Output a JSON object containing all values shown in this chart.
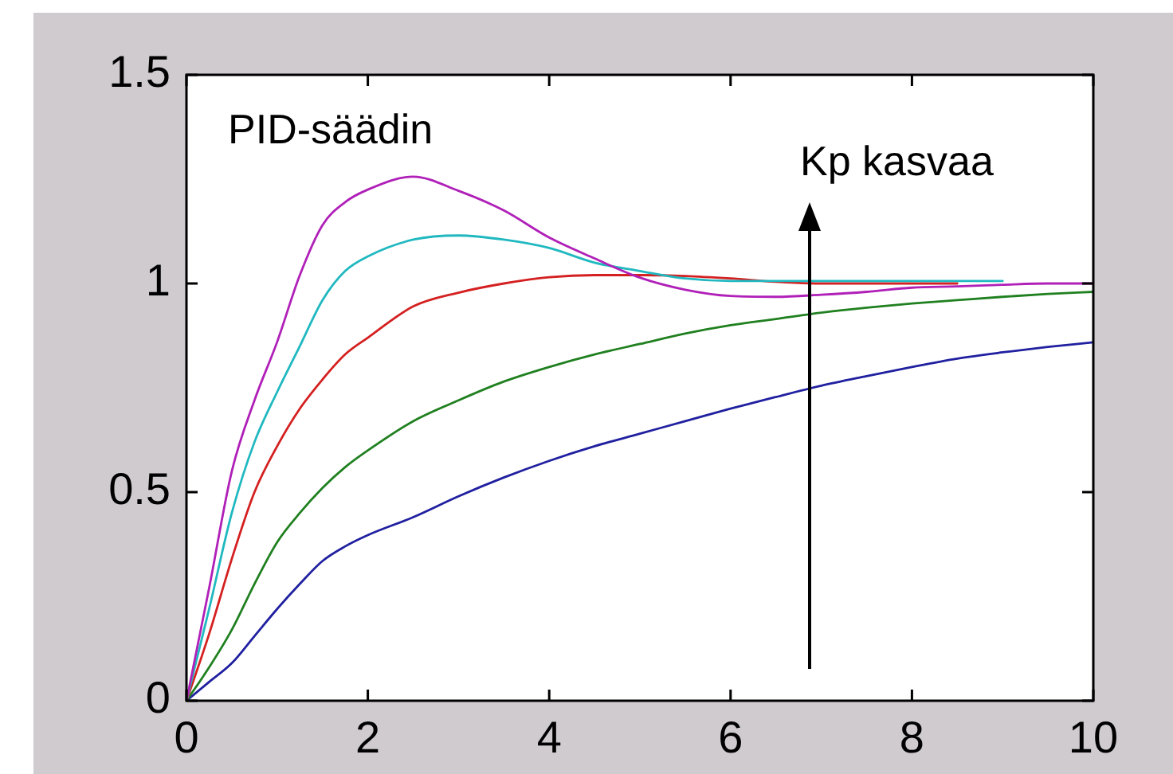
{
  "chart_data": {
    "type": "line",
    "x": [
      0,
      0.25,
      0.5,
      0.75,
      1,
      1.25,
      1.5,
      1.75,
      2,
      2.5,
      3,
      3.5,
      4,
      4.5,
      5,
      5.5,
      6,
      6.5,
      7,
      7.5,
      8,
      8.5,
      9,
      9.5,
      10
    ],
    "series": [
      {
        "color": "#2020a0",
        "values": [
          0,
          0.045,
          0.09,
          0.155,
          0.22,
          0.28,
          0.335,
          0.37,
          0.397,
          0.44,
          0.49,
          0.535,
          0.575,
          0.61,
          0.64,
          0.67,
          0.7,
          0.728,
          0.755,
          0.778,
          0.8,
          0.82,
          0.835,
          0.848,
          0.859
        ]
      },
      {
        "color": "#208020",
        "values": [
          0,
          0.08,
          0.17,
          0.28,
          0.38,
          0.45,
          0.51,
          0.56,
          0.6,
          0.67,
          0.72,
          0.765,
          0.8,
          0.83,
          0.855,
          0.88,
          0.9,
          0.915,
          0.93,
          0.942,
          0.952,
          0.96,
          0.968,
          0.975,
          0.98
        ]
      },
      {
        "color": "#d42020",
        "values": [
          0,
          0.16,
          0.34,
          0.5,
          0.61,
          0.7,
          0.77,
          0.83,
          0.87,
          0.945,
          0.978,
          1,
          1.015,
          1.02,
          1.02,
          1.018,
          1.012,
          1.004,
          1,
          1,
          1,
          1,
          null,
          null,
          null
        ]
      },
      {
        "color": "#20b8c0",
        "values": [
          0,
          0.22,
          0.45,
          0.62,
          0.74,
          0.85,
          0.96,
          1.03,
          1.065,
          1.105,
          1.115,
          1.105,
          1.085,
          1.05,
          1.03,
          1.012,
          1.006,
          1.006,
          1.006,
          1.006,
          1.006,
          1.006,
          1.006,
          null,
          null
        ]
      },
      {
        "color": "#b020b8",
        "values": [
          0,
          0.27,
          0.55,
          0.72,
          0.86,
          1.02,
          1.14,
          1.195,
          1.225,
          1.256,
          1.222,
          1.175,
          1.11,
          1.06,
          1.014,
          0.985,
          0.97,
          0.968,
          0.973,
          0.98,
          0.99,
          0.993,
          0.997,
          1,
          1
        ]
      }
    ],
    "xlim": [
      0,
      10
    ],
    "xticks": [
      0,
      2,
      4,
      6,
      8,
      10
    ],
    "ylim": [
      0,
      1.5
    ],
    "yticks": [
      0,
      0.5,
      1,
      1.5
    ],
    "legend": false,
    "annotations": [
      "PID-säädin",
      "Kp kasvaa"
    ]
  }
}
